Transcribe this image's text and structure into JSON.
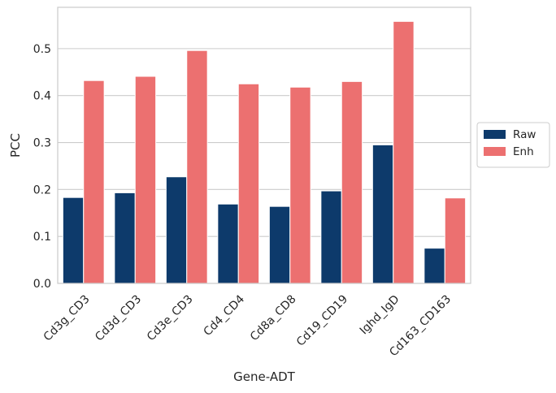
{
  "chart_data": {
    "type": "bar",
    "title": "",
    "xlabel": "Gene-ADT",
    "ylabel": "PCC",
    "categories": [
      "Cd3g_CD3",
      "Cd3d_CD3",
      "Cd3e_CD3",
      "Cd4_CD4",
      "Cd8a_CD8",
      "Cd19_CD19",
      "Ighd_IgD",
      "Cd163_CD163"
    ],
    "series": [
      {
        "name": "Raw",
        "color": "#0d3a6b",
        "values": [
          0.183,
          0.193,
          0.227,
          0.169,
          0.164,
          0.197,
          0.295,
          0.075
        ]
      },
      {
        "name": "Enh",
        "color": "#ec7070",
        "values": [
          0.432,
          0.441,
          0.496,
          0.425,
          0.418,
          0.43,
          0.558,
          0.182
        ]
      }
    ],
    "ylim": [
      0,
      0.588
    ],
    "yticks": [
      0.0,
      0.1,
      0.2,
      0.3,
      0.4,
      0.5
    ],
    "ytick_labels": [
      "0.0",
      "0.1",
      "0.2",
      "0.3",
      "0.4",
      "0.5"
    ],
    "grid": "y",
    "legend_position": "right"
  }
}
